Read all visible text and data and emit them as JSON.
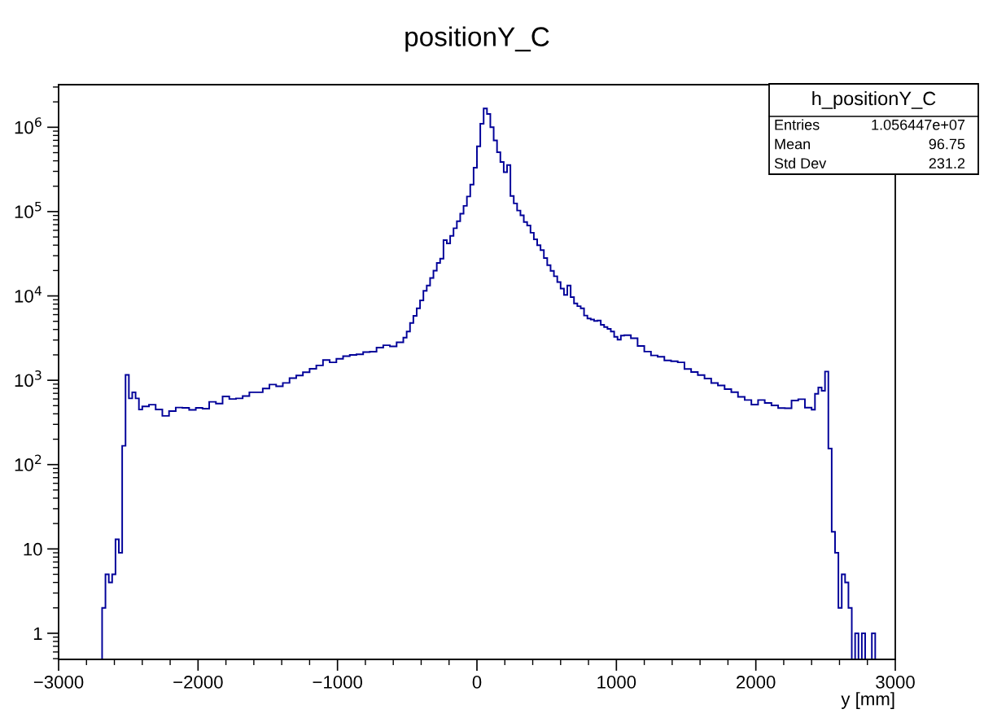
{
  "chart_data": {
    "type": "histogram",
    "title": "positionY_C",
    "xlabel": "y [mm]",
    "annotations": [
      "h_positionY_C",
      "Entries",
      "1.056447e+07",
      "Mean",
      "96.75",
      "Std Dev",
      "231.2"
    ],
    "color": "#000099",
    "bins": [
      -2688,
      -2664,
      -2640,
      -2616,
      -2592,
      -2568,
      -2544,
      -2520,
      -2496,
      -2472,
      -2448,
      -2424,
      -2400,
      -2352,
      -2304,
      -2256,
      -2208,
      -2160,
      -2112,
      -2064,
      -2016,
      -1968,
      -1920,
      -1872,
      -1824,
      -1776,
      -1728,
      -1680,
      -1632,
      -1584,
      -1536,
      -1488,
      -1440,
      -1392,
      -1344,
      -1296,
      -1248,
      -1200,
      -1152,
      -1104,
      -1056,
      -1008,
      -960,
      -912,
      -864,
      -816,
      -768,
      -720,
      -672,
      -624,
      -576,
      -528,
      -504,
      -480,
      -456,
      -432,
      -408,
      -384,
      -360,
      -336,
      -312,
      -288,
      -264,
      -240,
      -216,
      -192,
      -168,
      -144,
      -120,
      -96,
      -72,
      -48,
      -24,
      0,
      24,
      48,
      72,
      96,
      120,
      144,
      168,
      192,
      216,
      240,
      264,
      288,
      312,
      336,
      360,
      384,
      408,
      432,
      456,
      480,
      504,
      528,
      552,
      576,
      600,
      624,
      648,
      672,
      696,
      720,
      744,
      768,
      792,
      816,
      840,
      864,
      888,
      912,
      936,
      960,
      984,
      1008,
      1032,
      1056,
      1104,
      1152,
      1200,
      1248,
      1296,
      1344,
      1392,
      1440,
      1488,
      1536,
      1584,
      1632,
      1680,
      1728,
      1776,
      1824,
      1872,
      1920,
      1968,
      2016,
      2064,
      2112,
      2160,
      2208,
      2256,
      2304,
      2352,
      2400,
      2424,
      2448,
      2472,
      2496,
      2520,
      2544,
      2568,
      2592,
      2616,
      2640,
      2664,
      2688,
      2712,
      2736,
      2760,
      2784,
      2808,
      2832,
      2856
    ],
    "values": [
      2,
      5,
      4,
      5,
      13,
      9,
      167,
      1160,
      610,
      720,
      610,
      449,
      490,
      513,
      450,
      378,
      430,
      475,
      470,
      445,
      470,
      460,
      555,
      530,
      643,
      600,
      610,
      650,
      720,
      720,
      800,
      890,
      850,
      930,
      1060,
      1140,
      1245,
      1370,
      1500,
      1740,
      1630,
      1800,
      1930,
      2000,
      2030,
      2160,
      2180,
      2440,
      2600,
      2520,
      2820,
      3200,
      3780,
      4770,
      5810,
      7130,
      8870,
      11500,
      13300,
      16300,
      19900,
      24600,
      27700,
      45800,
      42000,
      51500,
      63500,
      76900,
      94400,
      117000,
      151000,
      209000,
      331000,
      593000,
      1100000,
      1670000,
      1440000,
      1000000,
      697000,
      505000,
      388000,
      294000,
      356000,
      153000,
      125000,
      103000,
      90200,
      75200,
      68400,
      56200,
      46800,
      39900,
      35000,
      28100,
      23200,
      19800,
      17100,
      14600,
      12200,
      10300,
      13300,
      9680,
      8130,
      7560,
      7130,
      5850,
      5410,
      5250,
      5060,
      5100,
      4540,
      4280,
      4060,
      3780,
      3270,
      3030,
      3390,
      3420,
      3150,
      2550,
      2190,
      1970,
      1900,
      1720,
      1680,
      1630,
      1360,
      1250,
      1150,
      1050,
      929,
      869,
      785,
      721,
      637,
      583,
      515,
      583,
      537,
      503,
      469,
      465,
      575,
      596,
      474,
      447,
      692,
      820,
      752,
      1270,
      155,
      16,
      9,
      2,
      5,
      4,
      2,
      null,
      1,
      null,
      1,
      null,
      null,
      1
    ],
    "log": "y",
    "xlim": [
      -3000,
      3000
    ],
    "ylim": [
      0.49,
      3200000
    ],
    "xticks": [
      {
        "value": -3000,
        "label": "−3000"
      },
      {
        "value": -2000,
        "label": "−2000"
      },
      {
        "value": -1000,
        "label": "−1000"
      },
      0,
      1000,
      2000,
      3000
    ],
    "yticks": [
      1,
      10,
      {
        "value": 100,
        "label": "10$^{2}$"
      },
      {
        "value": 1000,
        "label": "10$^{3}$"
      },
      {
        "value": 10000,
        "label": "10$^{4}$"
      },
      {
        "value": 100000,
        "label": "10$^{5}$"
      },
      {
        "value": 1000000,
        "label": "10$^{6}$"
      }
    ],
    "grid": false,
    "legend": false
  }
}
